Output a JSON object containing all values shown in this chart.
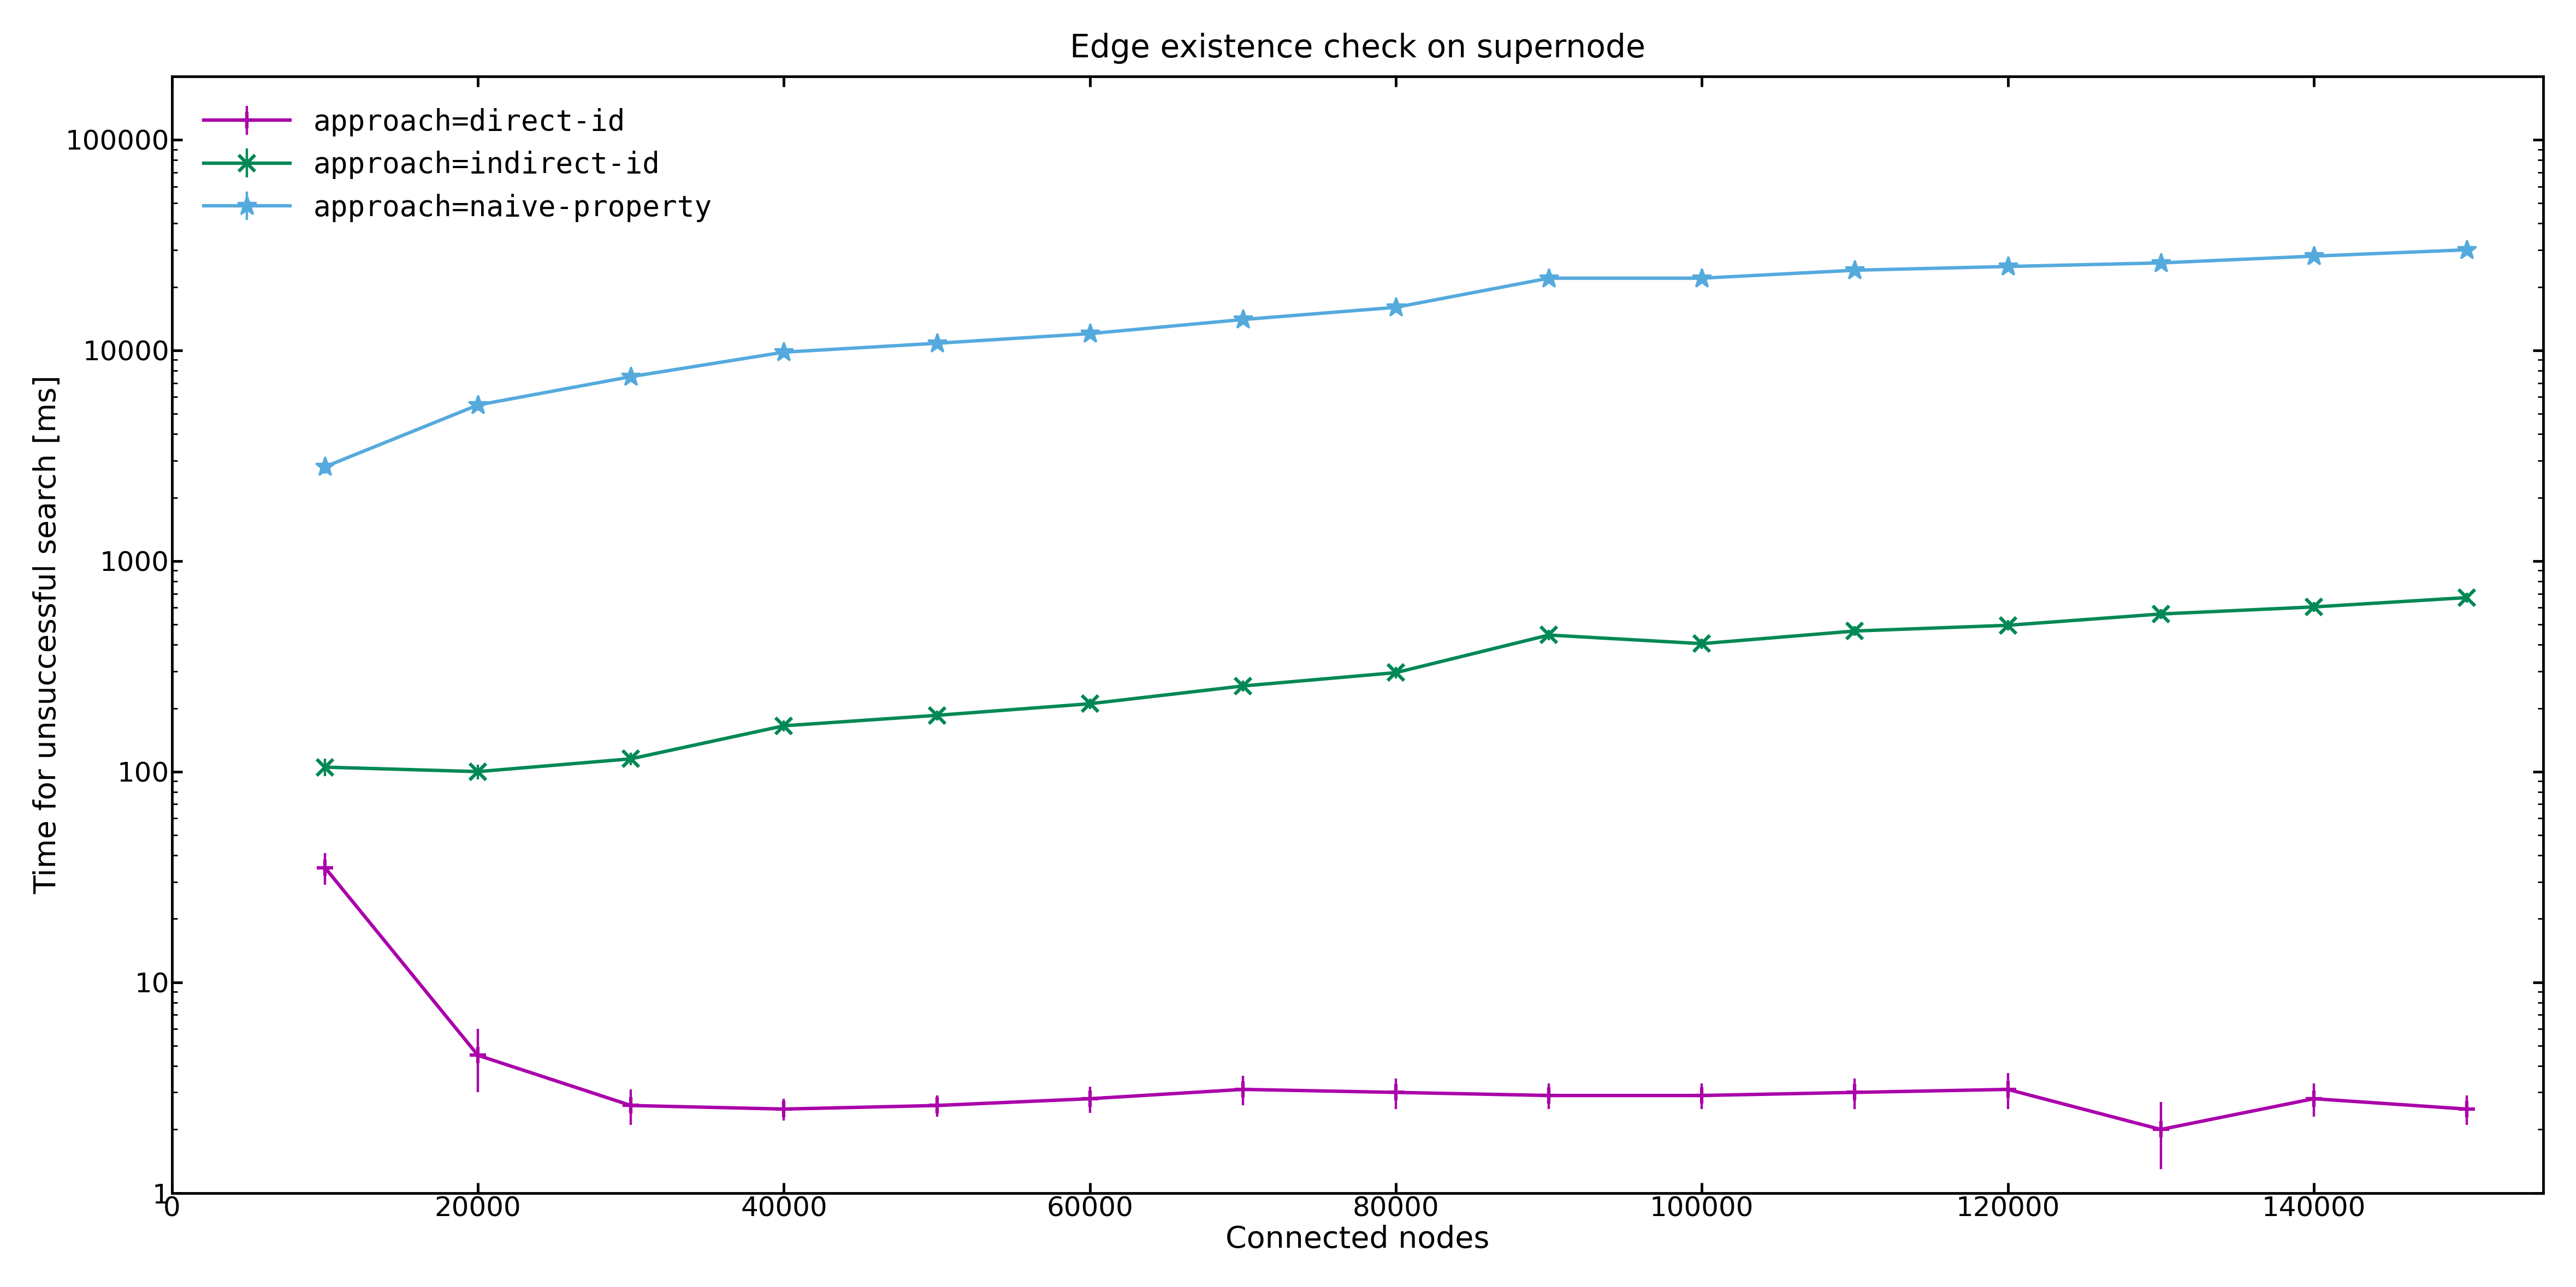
{
  "title": "Edge existence check on supernode",
  "xlabel": "Connected nodes",
  "ylabel": "Time for unsuccessful search [ms]",
  "series": [
    {
      "label": "approach=direct-id",
      "color": "#aa00aa",
      "marker": "+",
      "linewidth": 4.5,
      "markersize": 22,
      "markeredgewidth": 4.5,
      "x": [
        10000,
        20000,
        30000,
        40000,
        50000,
        60000,
        70000,
        80000,
        90000,
        100000,
        110000,
        120000,
        130000,
        140000,
        150000
      ],
      "y": [
        35.0,
        4.5,
        2.6,
        2.5,
        2.6,
        2.8,
        3.1,
        3.0,
        2.9,
        2.9,
        3.0,
        3.1,
        2.0,
        2.8,
        2.5
      ],
      "yerr_low": [
        6.0,
        1.5,
        0.5,
        0.3,
        0.3,
        0.4,
        0.5,
        0.5,
        0.4,
        0.4,
        0.5,
        0.6,
        0.7,
        0.5,
        0.4
      ],
      "yerr_high": [
        6.0,
        1.5,
        0.5,
        0.3,
        0.3,
        0.4,
        0.5,
        0.5,
        0.4,
        0.4,
        0.5,
        0.6,
        0.7,
        0.5,
        0.4
      ]
    },
    {
      "label": "approach=indirect-id",
      "color": "#008855",
      "marker": "x",
      "linewidth": 4.5,
      "markersize": 22,
      "markeredgewidth": 4.5,
      "x": [
        10000,
        20000,
        30000,
        40000,
        50000,
        60000,
        70000,
        80000,
        90000,
        100000,
        110000,
        120000,
        130000,
        140000,
        150000
      ],
      "y": [
        105.0,
        100.0,
        115.0,
        165.0,
        185.0,
        210.0,
        255.0,
        295.0,
        445.0,
        405.0,
        465.0,
        495.0,
        560.0,
        605.0,
        670.0
      ],
      "yerr_low": [
        10.0,
        8.0,
        8.0,
        10.0,
        10.0,
        12.0,
        15.0,
        18.0,
        25.0,
        22.0,
        25.0,
        28.0,
        30.0,
        32.0,
        35.0
      ],
      "yerr_high": [
        10.0,
        8.0,
        8.0,
        10.0,
        10.0,
        12.0,
        15.0,
        18.0,
        25.0,
        22.0,
        25.0,
        28.0,
        30.0,
        32.0,
        35.0
      ]
    },
    {
      "label": "approach=naive-property",
      "color": "#55aadd",
      "marker": "*",
      "linewidth": 4.5,
      "markersize": 26,
      "markeredgewidth": 2.5,
      "x": [
        10000,
        20000,
        30000,
        40000,
        50000,
        60000,
        70000,
        80000,
        90000,
        100000,
        110000,
        120000,
        130000,
        140000,
        150000
      ],
      "y": [
        2800.0,
        5500.0,
        7500.0,
        9800.0,
        10800.0,
        12000.0,
        14000.0,
        16000.0,
        22000.0,
        22000.0,
        24000.0,
        25000.0,
        26000.0,
        28000.0,
        30000.0
      ],
      "yerr_low": [
        200.0,
        300.0,
        400.0,
        500.0,
        500.0,
        600.0,
        700.0,
        800.0,
        1000.0,
        1000.0,
        1100.0,
        1200.0,
        1200.0,
        1300.0,
        1400.0
      ],
      "yerr_high": [
        200.0,
        300.0,
        400.0,
        500.0,
        500.0,
        600.0,
        700.0,
        800.0,
        1000.0,
        1000.0,
        1100.0,
        1200.0,
        1200.0,
        1300.0,
        1400.0
      ]
    }
  ],
  "xlim": [
    0,
    155000
  ],
  "ylim": [
    1,
    200000
  ],
  "xticks": [
    0,
    20000,
    40000,
    60000,
    80000,
    100000,
    120000,
    140000
  ],
  "xticklabels": [
    "0",
    "20000",
    "40000",
    "60000",
    "80000",
    "100000",
    "120000",
    "140000"
  ],
  "yticks": [
    1,
    10,
    100,
    1000,
    10000,
    100000
  ],
  "yticklabels": [
    "1",
    "10",
    "100",
    "1000",
    "10000",
    "100000"
  ],
  "background_color": "#ffffff",
  "plot_bg_color": "#ffffff",
  "spine_linewidth": 3.5,
  "legend_fontsize": 38,
  "title_fontsize": 42,
  "label_fontsize": 40,
  "tick_fontsize": 36
}
